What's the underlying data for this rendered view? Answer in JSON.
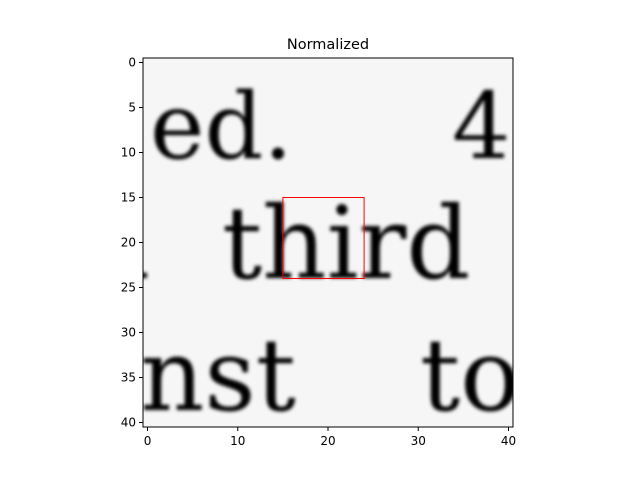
{
  "chart_data": {
    "type": "heatmap",
    "title": "Normalized",
    "xlabel": "",
    "ylabel": "",
    "xlim": [
      -0.5,
      40.5
    ],
    "ylim": [
      40.5,
      -0.5
    ],
    "y_inverted": true,
    "colormap": "gray",
    "grid": false,
    "x_ticks": [
      0,
      10,
      20,
      30,
      40
    ],
    "y_ticks": [
      0,
      5,
      10,
      15,
      20,
      25,
      30,
      35,
      40
    ],
    "image_content": "grayscale crop of printed text showing fragments 'ed.', 'third', 'nst t'",
    "highlight_box": {
      "x_range": [
        15,
        24
      ],
      "y_range": [
        15,
        24
      ],
      "color": "#ff0000"
    }
  }
}
